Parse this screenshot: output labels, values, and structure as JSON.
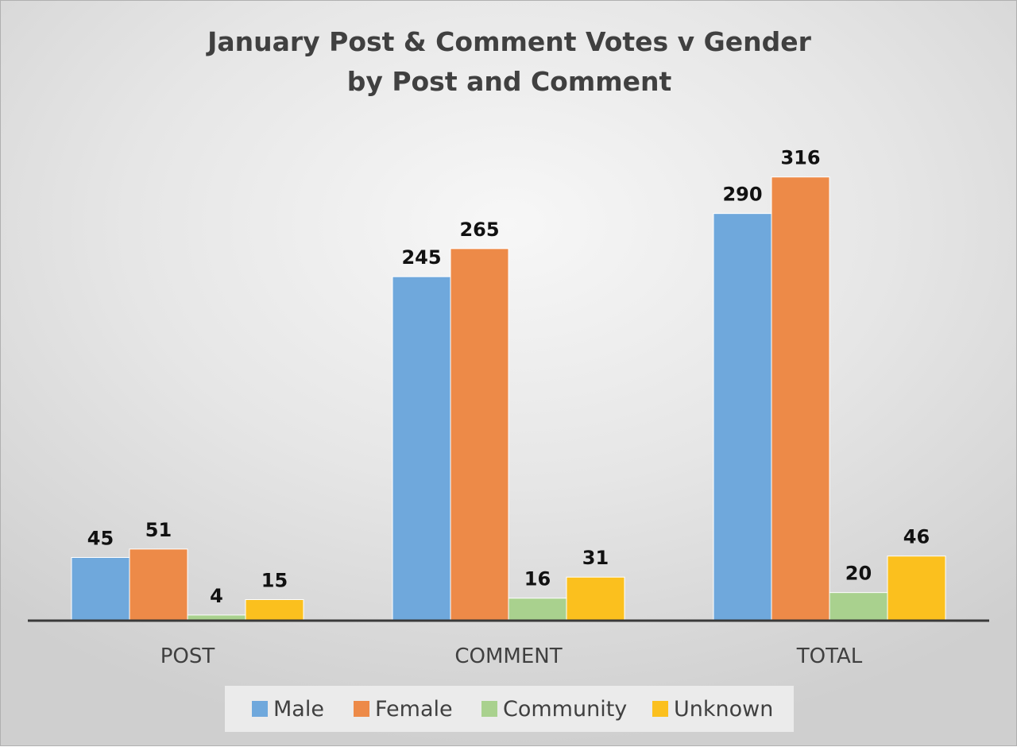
{
  "chart_data": {
    "type": "bar",
    "title_lines": [
      "January Post & Comment Votes v Gender",
      "by Post and Comment"
    ],
    "xlabel": "",
    "ylabel": "",
    "categories": [
      "POST",
      "COMMENT",
      "TOTAL"
    ],
    "series": [
      {
        "name": "Male",
        "color": "#6fa8dc",
        "values": [
          45,
          245,
          290
        ]
      },
      {
        "name": "Female",
        "color": "#ed8a48",
        "values": [
          51,
          265,
          316
        ]
      },
      {
        "name": "Community",
        "color": "#a9d18e",
        "values": [
          4,
          16,
          20
        ]
      },
      {
        "name": "Unknown",
        "color": "#fbc01e",
        "values": [
          15,
          31,
          46
        ]
      }
    ],
    "ylim": [
      0,
      350
    ],
    "gridlines": false,
    "y_axis_visible": false,
    "data_labels": true,
    "legend_position": "bottom"
  }
}
